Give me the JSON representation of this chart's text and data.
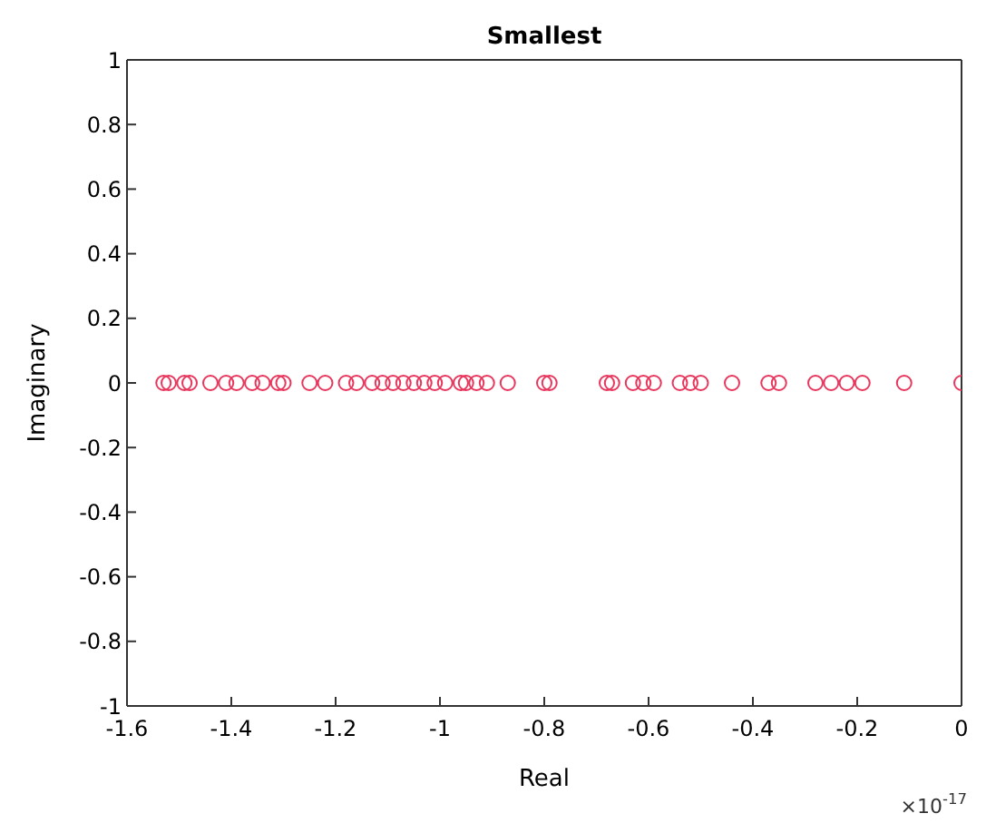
{
  "chart_data": {
    "type": "scatter",
    "title": "Smallest",
    "xlabel": "Real",
    "ylabel": "Imaginary",
    "annotations": [
      "×10$^{-17}$"
    ],
    "series": [
      {
        "color": "#e8365d",
        "x": [
          -1.53,
          -1.52,
          -1.49,
          -1.48,
          -1.44,
          -1.41,
          -1.39,
          -1.36,
          -1.34,
          -1.31,
          -1.3,
          -1.25,
          -1.22,
          -1.18,
          -1.16,
          -1.13,
          -1.11,
          -1.09,
          -1.07,
          -1.05,
          -1.03,
          -1.01,
          -0.99,
          -0.96,
          -0.95,
          -0.93,
          -0.91,
          -0.87,
          -0.8,
          -0.79,
          -0.68,
          -0.67,
          -0.63,
          -0.61,
          -0.59,
          -0.54,
          -0.52,
          -0.5,
          -0.44,
          -0.37,
          -0.35,
          -0.28,
          -0.25,
          -0.22,
          -0.19,
          -0.11,
          0
        ],
        "values": [
          0,
          0,
          0,
          0,
          0,
          0,
          0,
          0,
          0,
          0,
          0,
          0,
          0,
          0,
          0,
          0,
          0,
          0,
          0,
          0,
          0,
          0,
          0,
          0,
          0,
          0,
          0,
          0,
          0,
          0,
          0,
          0,
          0,
          0,
          0,
          0,
          0,
          0,
          0,
          0,
          0,
          0,
          0,
          0,
          0,
          0,
          0
        ]
      }
    ],
    "xlim": [
      -1.6,
      0
    ],
    "xticks": [
      -1.6,
      -1.4,
      -1.2,
      -1,
      -0.8,
      -0.6,
      -0.4,
      -0.2,
      0
    ],
    "ylim": [
      -1,
      1
    ],
    "yticks": [
      -1,
      -0.8,
      -0.6,
      -0.4,
      -0.2,
      0,
      0.2,
      0.4,
      0.6,
      0.8,
      1
    ],
    "marker": "circle"
  }
}
